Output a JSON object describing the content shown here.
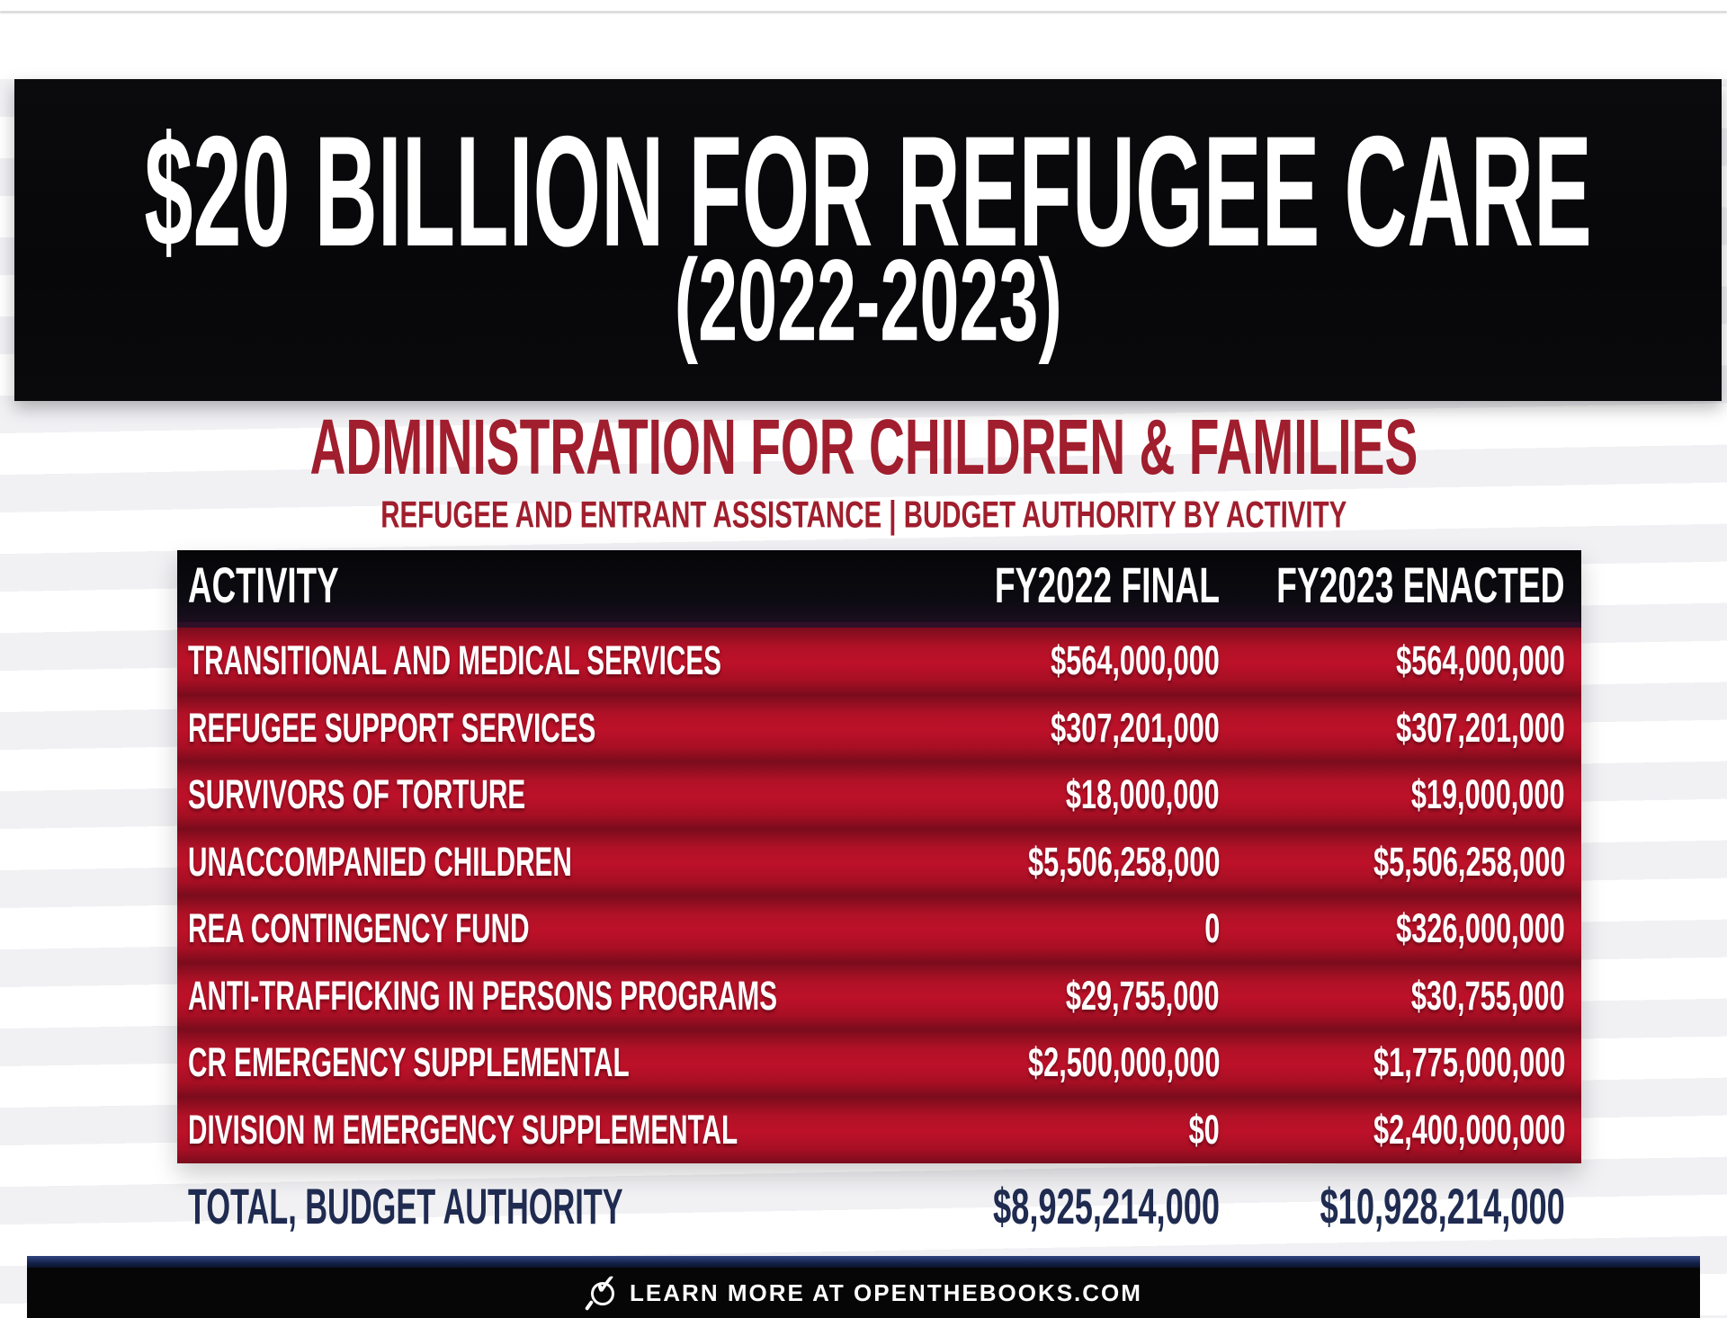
{
  "title_band": {
    "title": "$20 BILLION FOR REFUGEE CARE",
    "subtitle": "(2022-2023)"
  },
  "section": {
    "heading": "ADMINISTRATION FOR CHILDREN & FAMILIES",
    "subheading": "REFUGEE AND ENTRANT ASSISTANCE | BUDGET AUTHORITY BY ACTIVITY"
  },
  "chart_data": {
    "type": "table",
    "title": "$20 BILLION FOR REFUGEE CARE (2022-2023)",
    "subtitle": "ADMINISTRATION FOR CHILDREN & FAMILIES — REFUGEE AND ENTRANT ASSISTANCE | BUDGET AUTHORITY BY ACTIVITY",
    "columns": [
      "ACTIVITY",
      "FY2022 FINAL",
      "FY2023 ENACTED"
    ],
    "rows": [
      {
        "activity": "TRANSITIONAL AND MEDICAL SERVICES",
        "fy2022": "$564,000,000",
        "fy2023": "$564,000,000"
      },
      {
        "activity": "REFUGEE SUPPORT SERVICES",
        "fy2022": "$307,201,000",
        "fy2023": "$307,201,000"
      },
      {
        "activity": "SURVIVORS OF TORTURE",
        "fy2022": "$18,000,000",
        "fy2023": "$19,000,000"
      },
      {
        "activity": "UNACCOMPANIED CHILDREN",
        "fy2022": "$5,506,258,000",
        "fy2023": "$5,506,258,000"
      },
      {
        "activity": "REA CONTINGENCY FUND",
        "fy2022": "0",
        "fy2023": "$326,000,000"
      },
      {
        "activity": "ANTI-TRAFFICKING IN PERSONS PROGRAMS",
        "fy2022": "$29,755,000",
        "fy2023": "$30,755,000"
      },
      {
        "activity": "CR EMERGENCY SUPPLEMENTAL",
        "fy2022": "$2,500,000,000",
        "fy2023": "$1,775,000,000"
      },
      {
        "activity": "DIVISION M EMERGENCY SUPPLEMENTAL",
        "fy2022": "$0",
        "fy2023": "$2,400,000,000"
      }
    ],
    "total_row": {
      "activity": "TOTAL, BUDGET AUTHORITY",
      "fy2022": "$8,925,214,000",
      "fy2023": "$10,928,214,000"
    }
  },
  "footer": {
    "label": "LEARN MORE AT OPENTHEBOOKS.COM",
    "icon": "magnifier-check-icon"
  },
  "colors": {
    "band_black": "#08080a",
    "heading_crimson": "#a01e2d",
    "table_row_red": "#bd1129",
    "table_row_dark_red": "#7a0c1c",
    "table_header_black": "#0a090d",
    "total_navy": "#1f2b50",
    "footer_navy_line": "#223569",
    "footer_black": "#060607",
    "text_white": "#ffffff"
  }
}
